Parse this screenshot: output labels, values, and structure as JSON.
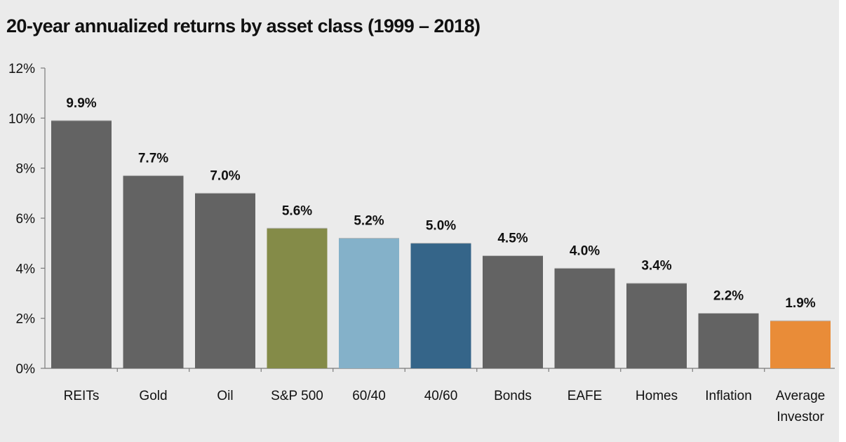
{
  "chart_data": {
    "type": "bar",
    "title": "20-year annualized returns by asset class (1999 – 2018)",
    "xlabel": "",
    "ylabel": "",
    "categories": [
      [
        "REITs"
      ],
      [
        "Gold"
      ],
      [
        "Oil"
      ],
      [
        "S&P 500"
      ],
      [
        "60/40"
      ],
      [
        "40/60"
      ],
      [
        "Bonds"
      ],
      [
        "EAFE"
      ],
      [
        "Homes"
      ],
      [
        "Inflation"
      ],
      [
        "Average",
        "Investor"
      ]
    ],
    "values": [
      9.9,
      7.7,
      7.0,
      5.6,
      5.2,
      5.0,
      4.5,
      4.0,
      3.4,
      2.2,
      1.9
    ],
    "data_labels": [
      "9.9%",
      "7.7%",
      "7.0%",
      "5.6%",
      "5.2%",
      "5.0%",
      "4.5%",
      "4.0%",
      "3.4%",
      "2.2%",
      "1.9%"
    ],
    "colors": [
      "#636363",
      "#636363",
      "#636363",
      "#848b48",
      "#84b1c9",
      "#356589",
      "#636363",
      "#636363",
      "#636363",
      "#636363",
      "#e98c38"
    ],
    "ylim": [
      0,
      12
    ],
    "yticks": [
      0,
      2,
      4,
      6,
      8,
      10,
      12
    ],
    "ytick_labels": [
      "0%",
      "2%",
      "4%",
      "6%",
      "8%",
      "10%",
      "12%"
    ],
    "grid": false,
    "legend": "none"
  }
}
